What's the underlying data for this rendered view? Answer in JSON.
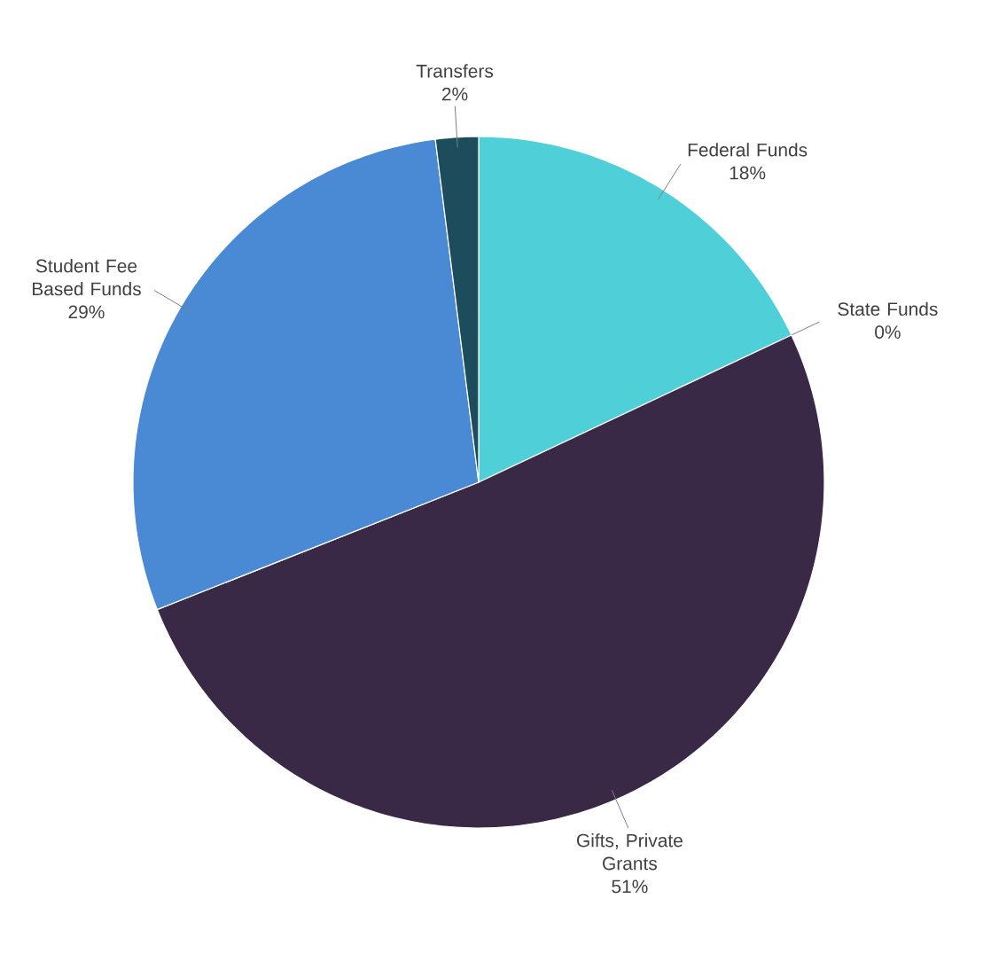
{
  "chart_data": {
    "type": "pie",
    "categories": [
      "Federal Funds",
      "State Funds",
      "Gifts, Private Grants",
      "Student Fee Based Funds",
      "Transfers"
    ],
    "values": [
      18,
      0,
      51,
      29,
      2
    ],
    "value_labels": [
      "18%",
      "0%",
      "51%",
      "29%",
      "2%"
    ],
    "colors": [
      "#4fd0d8",
      "#c9d24a",
      "#3a2847",
      "#4a8ad4",
      "#1d4d5c"
    ]
  }
}
